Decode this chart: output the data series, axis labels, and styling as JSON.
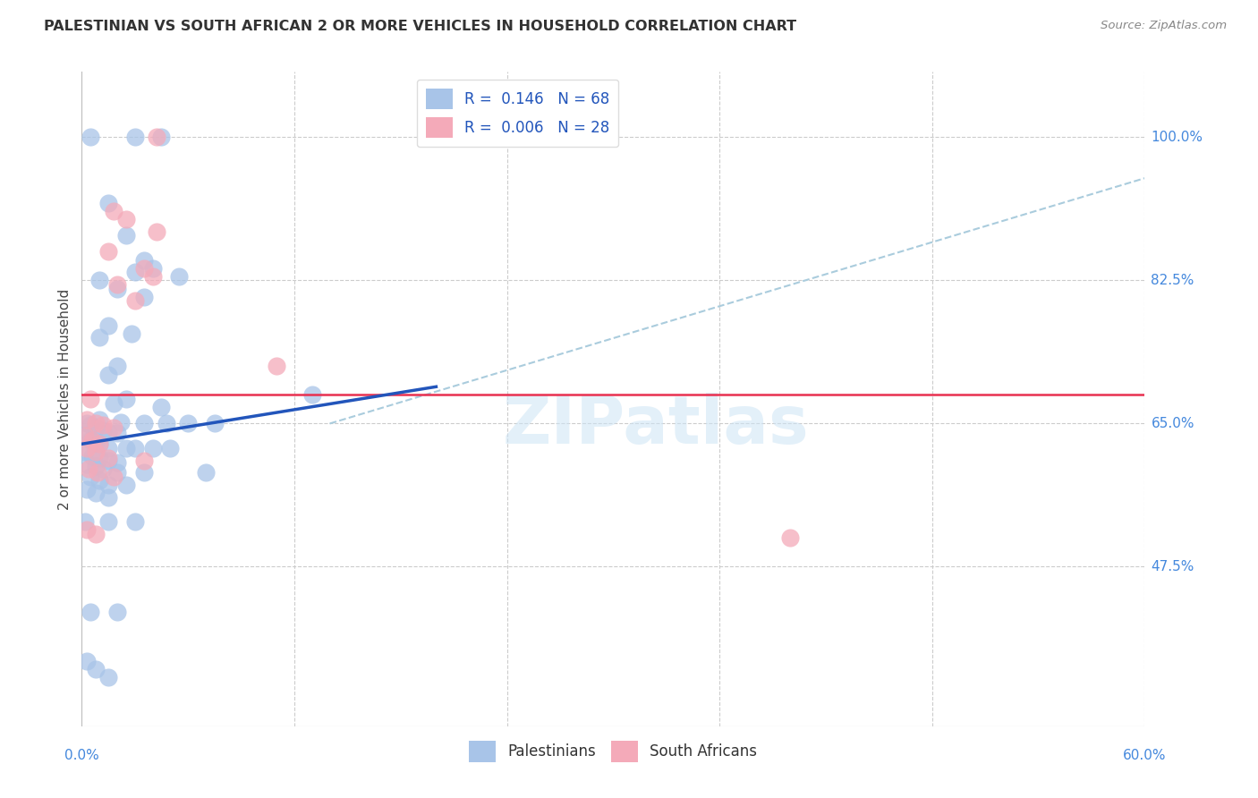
{
  "title": "PALESTINIAN VS SOUTH AFRICAN 2 OR MORE VEHICLES IN HOUSEHOLD CORRELATION CHART",
  "source": "Source: ZipAtlas.com",
  "ylabel": "2 or more Vehicles in Household",
  "y_ticks": [
    47.5,
    65.0,
    82.5,
    100.0
  ],
  "x_min": 0.0,
  "x_max": 60.0,
  "y_min": 28.0,
  "y_max": 108.0,
  "legend_blue_R": "0.146",
  "legend_blue_N": "68",
  "legend_pink_R": "0.006",
  "legend_pink_N": "28",
  "blue_color": "#a8c4e8",
  "pink_color": "#f4aab9",
  "trend_blue_color": "#2255bb",
  "trend_pink_color": "#e83050",
  "trend_dash_color": "#aaccdd",
  "watermark": "ZIPatlas",
  "blue_dots": [
    [
      0.5,
      100.0
    ],
    [
      3.0,
      100.0
    ],
    [
      4.5,
      100.0
    ],
    [
      1.5,
      92.0
    ],
    [
      2.5,
      88.0
    ],
    [
      3.5,
      85.0
    ],
    [
      3.0,
      83.5
    ],
    [
      4.0,
      84.0
    ],
    [
      5.5,
      83.0
    ],
    [
      1.0,
      82.5
    ],
    [
      2.0,
      81.5
    ],
    [
      3.5,
      80.5
    ],
    [
      1.5,
      77.0
    ],
    [
      2.8,
      76.0
    ],
    [
      1.0,
      75.5
    ],
    [
      2.0,
      72.0
    ],
    [
      1.5,
      71.0
    ],
    [
      13.0,
      68.5
    ],
    [
      2.5,
      68.0
    ],
    [
      1.8,
      67.5
    ],
    [
      4.5,
      67.0
    ],
    [
      1.0,
      65.5
    ],
    [
      2.2,
      65.2
    ],
    [
      3.5,
      65.0
    ],
    [
      4.8,
      65.0
    ],
    [
      6.0,
      65.0
    ],
    [
      7.5,
      65.0
    ],
    [
      0.3,
      65.0
    ],
    [
      0.5,
      64.8
    ],
    [
      0.8,
      64.5
    ],
    [
      1.2,
      64.2
    ],
    [
      1.5,
      64.0
    ],
    [
      2.0,
      63.8
    ],
    [
      0.2,
      63.5
    ],
    [
      0.5,
      63.0
    ],
    [
      0.8,
      62.8
    ],
    [
      1.0,
      62.5
    ],
    [
      1.5,
      62.0
    ],
    [
      2.5,
      62.0
    ],
    [
      3.0,
      62.0
    ],
    [
      4.0,
      62.0
    ],
    [
      5.0,
      62.0
    ],
    [
      0.2,
      61.5
    ],
    [
      0.6,
      61.0
    ],
    [
      1.0,
      60.8
    ],
    [
      1.5,
      60.5
    ],
    [
      2.0,
      60.2
    ],
    [
      0.3,
      60.0
    ],
    [
      0.8,
      59.8
    ],
    [
      1.2,
      59.5
    ],
    [
      2.0,
      59.0
    ],
    [
      3.5,
      59.0
    ],
    [
      7.0,
      59.0
    ],
    [
      0.5,
      58.5
    ],
    [
      1.0,
      58.0
    ],
    [
      1.5,
      57.5
    ],
    [
      2.5,
      57.5
    ],
    [
      0.3,
      57.0
    ],
    [
      0.8,
      56.5
    ],
    [
      1.5,
      56.0
    ],
    [
      0.2,
      53.0
    ],
    [
      1.5,
      53.0
    ],
    [
      3.0,
      53.0
    ],
    [
      0.5,
      42.0
    ],
    [
      2.0,
      42.0
    ],
    [
      0.3,
      36.0
    ],
    [
      0.8,
      35.0
    ],
    [
      1.5,
      34.0
    ]
  ],
  "pink_dots": [
    [
      4.2,
      100.0
    ],
    [
      1.8,
      91.0
    ],
    [
      2.5,
      90.0
    ],
    [
      4.2,
      88.5
    ],
    [
      1.5,
      86.0
    ],
    [
      3.5,
      84.0
    ],
    [
      4.0,
      83.0
    ],
    [
      2.0,
      82.0
    ],
    [
      3.0,
      80.0
    ],
    [
      11.0,
      72.0
    ],
    [
      0.5,
      68.0
    ],
    [
      0.3,
      65.5
    ],
    [
      0.8,
      65.0
    ],
    [
      1.2,
      64.8
    ],
    [
      1.8,
      64.5
    ],
    [
      0.2,
      63.5
    ],
    [
      0.6,
      63.0
    ],
    [
      1.0,
      62.5
    ],
    [
      0.3,
      62.0
    ],
    [
      0.8,
      61.5
    ],
    [
      1.5,
      60.8
    ],
    [
      3.5,
      60.5
    ],
    [
      0.4,
      59.5
    ],
    [
      0.9,
      59.0
    ],
    [
      1.8,
      58.5
    ],
    [
      0.3,
      52.0
    ],
    [
      0.8,
      51.5
    ],
    [
      40.0,
      51.0
    ]
  ],
  "blue_trend_x": [
    0.0,
    20.0
  ],
  "blue_trend_y": [
    62.5,
    69.5
  ],
  "pink_trend_y": 68.5,
  "dash_trend_x": [
    14.0,
    60.0
  ],
  "dash_trend_y": [
    65.0,
    95.0
  ],
  "x_grid": [
    12,
    24,
    36,
    48,
    60
  ]
}
